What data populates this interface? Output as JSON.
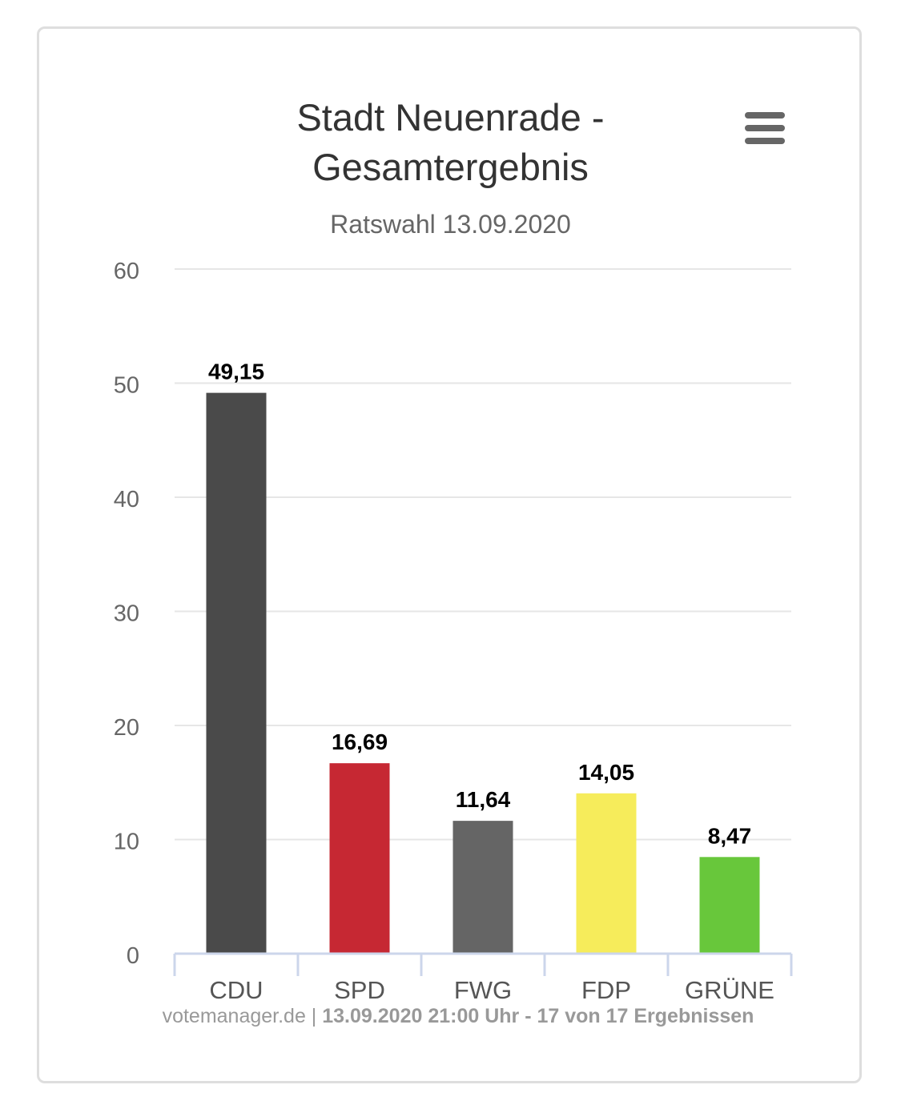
{
  "chart_data": {
    "type": "bar",
    "title_lines": [
      "Stadt Neuenrade -",
      "Gesamtergebnis"
    ],
    "subtitle": "Ratswahl 13.09.2020",
    "categories": [
      "CDU",
      "SPD",
      "FWG",
      "FDP",
      "GRÜNE"
    ],
    "values": [
      49.15,
      16.69,
      11.64,
      14.05,
      8.47
    ],
    "value_labels": [
      "49,15",
      "16,69",
      "11,64",
      "14,05",
      "8,47"
    ],
    "colors": [
      "#4a4a4a",
      "#c62833",
      "#656565",
      "#f6ec5b",
      "#68c73b"
    ],
    "ylim": [
      0,
      60
    ],
    "yticks": [
      "0",
      "10",
      "20",
      "30",
      "40",
      "50",
      "60"
    ],
    "grid": true,
    "xlabel": "",
    "ylabel": ""
  },
  "credits": {
    "source": "votemanager.de",
    "separator": " | ",
    "detail": "13.09.2020 21:00 Uhr - 17 von 17 Ergebnissen"
  },
  "menu": {
    "icon": "hamburger-menu-icon"
  }
}
